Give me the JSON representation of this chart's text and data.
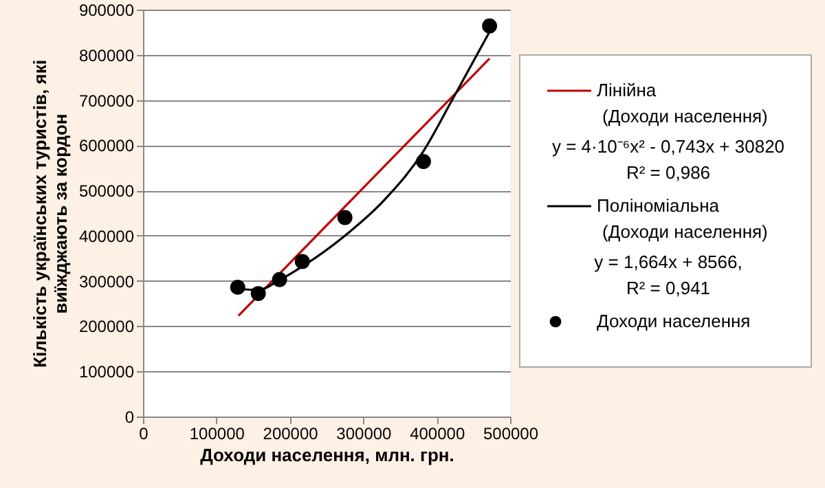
{
  "chart_data": {
    "type": "scatter",
    "xlabel": "Доходи населення, млн. грн.",
    "ylabel": "Кількість українських туристів, які виїжджають за кордон",
    "xlim": [
      0,
      500000
    ],
    "xticks": [
      0,
      100000,
      200000,
      300000,
      400000,
      500000
    ],
    "ylim": [
      0,
      900000
    ],
    "yticks": [
      0,
      100000,
      200000,
      300000,
      400000,
      500000,
      600000,
      700000,
      800000,
      900000
    ],
    "grid": "y",
    "legend": "right",
    "annotations": [
      "y = 4·10⁻⁶x² - 0,743x + 30820",
      "R² = 0,986",
      "y = 1,664x + 8566,",
      "R² = 0,941"
    ],
    "series": [
      {
        "name": "Лінійна (Доходи населення)",
        "type": "line",
        "color": "#c00000",
        "x": [
          130000,
          472000
        ],
        "values": [
          223000,
          792000
        ]
      },
      {
        "name": "Поліноміальна (Доходи населення)",
        "type": "line",
        "color": "#000000",
        "x": [
          130000,
          157000,
          186000,
          217000,
          275000,
          327000,
          382000,
          420000,
          472000
        ],
        "values": [
          282000,
          280000,
          302000,
          332000,
          400000,
          476000,
          587000,
          697000,
          851000
        ]
      },
      {
        "name": "Доходи населення",
        "type": "scatter",
        "color": "#000000",
        "marker": "circle",
        "x": [
          129000,
          157000,
          186000,
          217000,
          275000,
          382000,
          472000
        ],
        "values": [
          286000,
          272000,
          303000,
          343000,
          440000,
          564000,
          864000
        ]
      }
    ]
  }
}
